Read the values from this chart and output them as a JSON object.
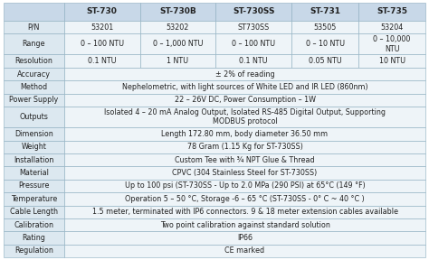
{
  "col_headers": [
    "",
    "ST-730",
    "ST-730B",
    "ST-730SS",
    "ST-731",
    "ST-735"
  ],
  "rows": [
    [
      "P/N",
      "53201",
      "53202",
      "ST730SS",
      "53505",
      "53204"
    ],
    [
      "Range",
      "0 – 100 NTU",
      "0 – 1,000 NTU",
      "0 – 100 NTU",
      "0 – 10 NTU",
      "0 – 10,000\nNTU"
    ],
    [
      "Resolution",
      "0.1 NTU",
      "1 NTU",
      "0.1 NTU",
      "0.05 NTU",
      "10 NTU"
    ],
    [
      "Accuracy",
      "± 2% of reading",
      "",
      "",
      "",
      ""
    ],
    [
      "Method",
      "Nephelometric, with light sources of White LED and IR LED (860nm)",
      "",
      "",
      "",
      ""
    ],
    [
      "Power Supply",
      "22 – 26V DC, Power Consumption – 1W",
      "",
      "",
      "",
      ""
    ],
    [
      "Outputs",
      "Isolated 4 – 20 mA Analog Output, Isolated RS-485 Digital Output, Supporting\nMODBUS protocol",
      "",
      "",
      "",
      ""
    ],
    [
      "Dimension",
      "Length 172.80 mm, body diameter 36.50 mm",
      "",
      "",
      "",
      ""
    ],
    [
      "Weight",
      "78 Gram (1.15 Kg for ST-730SS)",
      "",
      "",
      "",
      ""
    ],
    [
      "Installation",
      "Custom Tee with ¾ NPT Glue & Thread",
      "",
      "",
      "",
      ""
    ],
    [
      "Material",
      "CPVC (304 Stainless Steel for ST-730SS)",
      "",
      "",
      "",
      ""
    ],
    [
      "Pressure",
      "Up to 100 psi (ST-730SS - Up to 2.0 MPa (290 PSI) at 65°C (149 °F)",
      "",
      "",
      "",
      ""
    ],
    [
      "Temperature",
      "Operation 5 – 50 °C, Storage -6 – 65 °C (ST-730SS - 0° C ~ 40 °C )",
      "",
      "",
      "",
      ""
    ],
    [
      "Cable Length",
      "1.5 meter, terminated with IP6 connectors. 9 & 18 meter extension cables available",
      "",
      "",
      "",
      ""
    ],
    [
      "Calibration",
      "Two point calibration against standard solution",
      "",
      "",
      "",
      ""
    ],
    [
      "Rating",
      "IP66",
      "",
      "",
      "",
      ""
    ],
    [
      "Regulation",
      "CE marked",
      "",
      "",
      "",
      ""
    ]
  ],
  "header_bg": "#c8d8e8",
  "label_col_bg": "#dce8f0",
  "span_bg": "#eef4f8",
  "row_bg_even": "#eef4f8",
  "row_bg_odd": "#eef4f8",
  "border_color": "#8aacbe",
  "text_color": "#222222",
  "header_font_size": 6.5,
  "cell_font_size": 5.8,
  "fig_width": 4.74,
  "fig_height": 2.88,
  "dpi": 100
}
